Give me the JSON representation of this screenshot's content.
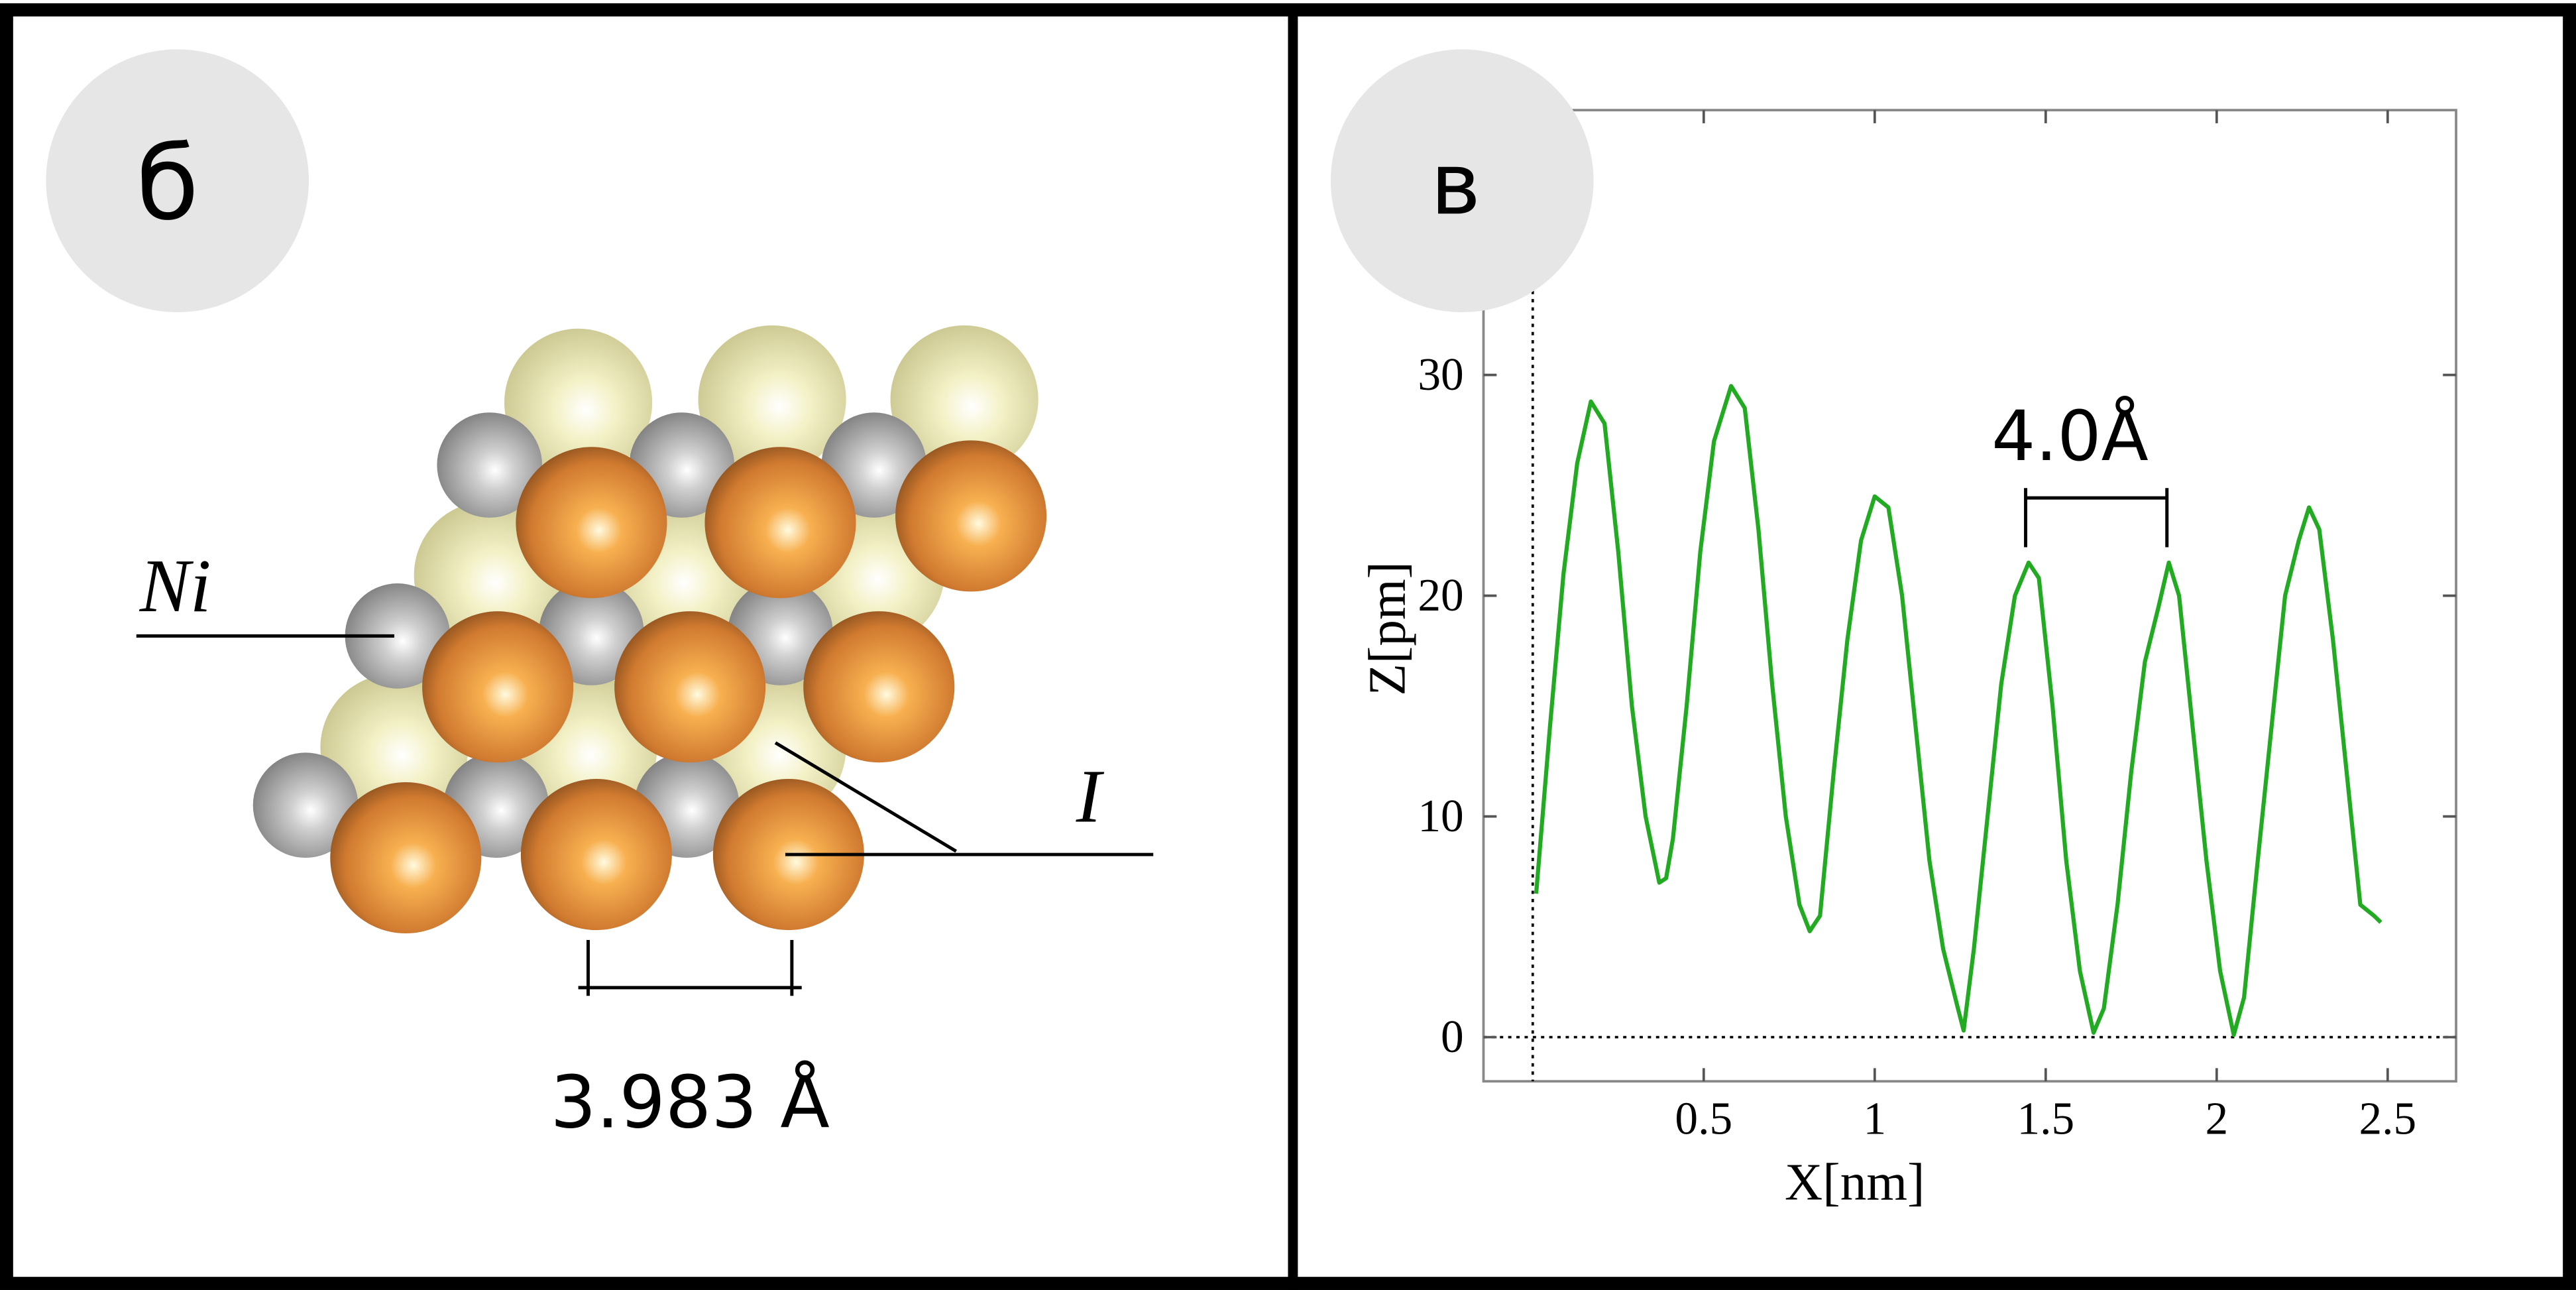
{
  "panels": [
    {
      "label": "б",
      "atom_labels": [
        "Ni",
        "I"
      ],
      "spacing_label": "3.983 Å"
    },
    {
      "label": "в"
    }
  ],
  "chart_data": {
    "type": "line",
    "x_label": "X[nm]",
    "y_label": "Z[pm]",
    "annotation": "4.0Å",
    "x": [
      0.01,
      0.05,
      0.09,
      0.13,
      0.17,
      0.21,
      0.25,
      0.29,
      0.33,
      0.37,
      0.39,
      0.41,
      0.45,
      0.49,
      0.53,
      0.58,
      0.62,
      0.66,
      0.7,
      0.74,
      0.78,
      0.81,
      0.84,
      0.88,
      0.92,
      0.96,
      1.0,
      1.04,
      1.08,
      1.12,
      1.16,
      1.2,
      1.24,
      1.26,
      1.29,
      1.33,
      1.37,
      1.41,
      1.45,
      1.48,
      1.52,
      1.56,
      1.6,
      1.64,
      1.67,
      1.71,
      1.75,
      1.79,
      1.83,
      1.86,
      1.89,
      1.93,
      1.97,
      2.01,
      2.05,
      2.08,
      2.12,
      2.16,
      2.2,
      2.24,
      2.27,
      2.3,
      2.34,
      2.38,
      2.42,
      2.46,
      2.48
    ],
    "series": [
      {
        "color": "#22aa22",
        "values": [
          6.5,
          14,
          21,
          26,
          28.8,
          27.8,
          22,
          15,
          10,
          7,
          7.2,
          9,
          15,
          22,
          27,
          29.5,
          28.5,
          23,
          16,
          10,
          6,
          4.8,
          5.5,
          12,
          18,
          22.5,
          24.5,
          24,
          20,
          14,
          8,
          4,
          1.5,
          0.3,
          4,
          10,
          16,
          20,
          21.5,
          20.8,
          15,
          8,
          3,
          0.2,
          1.3,
          6,
          12,
          17,
          19.5,
          21.5,
          20,
          14,
          8,
          3,
          0.1,
          1.8,
          8,
          14,
          20,
          22.5,
          24,
          23,
          18,
          12,
          6,
          5.5,
          5.2
        ]
      }
    ],
    "xlim": [
      -0.144,
      2.7
    ],
    "ylim": [
      -2,
      42
    ],
    "xticks": [
      0.5,
      1,
      1.5,
      2,
      2.5
    ],
    "yticks": [
      0,
      10,
      20,
      30
    ]
  }
}
